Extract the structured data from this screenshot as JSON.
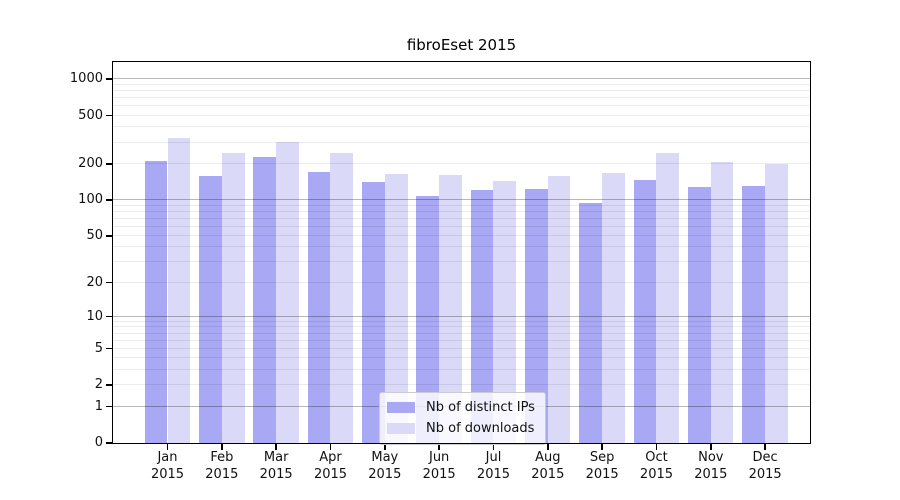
{
  "title": "fibroEset 2015",
  "colors": {
    "bar_ips": "#a8a8f4",
    "bar_downloads": "#dadaf8",
    "grid_major": "rgba(0,0,0,0.28)",
    "grid_minor": "rgba(0,0,0,0.08)"
  },
  "legend": {
    "items": [
      {
        "label": "Nb of distinct IPs",
        "series_key": "ips"
      },
      {
        "label": "Nb of downloads",
        "series_key": "downloads"
      }
    ]
  },
  "chart_data": {
    "type": "bar",
    "title": "fibroEset 2015",
    "categories": [
      "Jan",
      "Feb",
      "Mar",
      "Apr",
      "May",
      "Jun",
      "Jul",
      "Aug",
      "Sep",
      "Oct",
      "Nov",
      "Dec"
    ],
    "category_year": "2015",
    "series": [
      {
        "name": "Nb of distinct IPs",
        "values": [
          210,
          157,
          226,
          170,
          141,
          109,
          122,
          123,
          95,
          147,
          128,
          132
        ]
      },
      {
        "name": "Nb of downloads",
        "values": [
          330,
          244,
          305,
          247,
          164,
          161,
          145,
          157,
          167,
          246,
          205,
          201
        ]
      }
    ],
    "xlabel": "",
    "ylabel": "",
    "y_scale": "log1p",
    "y_ticks": [
      0,
      1,
      2,
      5,
      10,
      20,
      50,
      100,
      200,
      500,
      1000
    ],
    "y_minor_gridlines_decades": [
      1,
      10,
      100
    ],
    "y_max": 1388,
    "grid": true,
    "legend_position": "bottom-center"
  }
}
